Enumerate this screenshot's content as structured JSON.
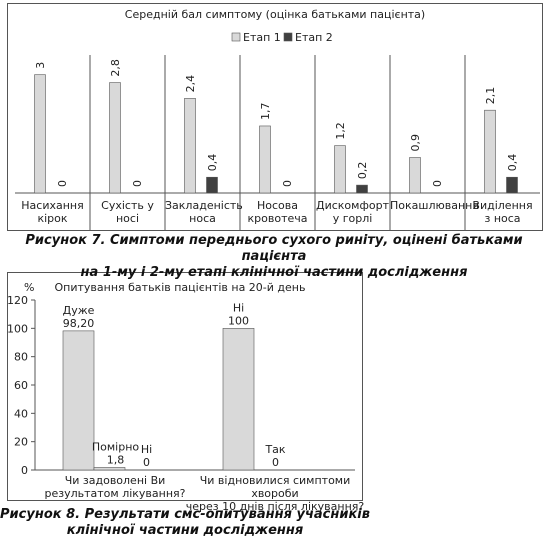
{
  "chart_data": [
    {
      "type": "bar",
      "title": "Середній бал симптому (оцінка батьками пацієнта)",
      "caption": "Рисунок 7. Симптоми переднього сухого риніту, оцінені батьками пацієнта\nна 1-му і 2-му етапі клінічної частини дослідження",
      "categories": [
        "Насихання\nкірок",
        "Сухість у носі",
        "Закладеність\nноса",
        "Носова\nкровотеча",
        "Дискомфорт\nу горлі",
        "Покашлювання",
        "Виділення\nз носа"
      ],
      "series": [
        {
          "name": "Етап 1",
          "color": "#d9d9d9",
          "values": [
            3,
            2.8,
            2.4,
            1.7,
            1.2,
            0.9,
            2.1
          ],
          "value_labels": [
            "3",
            "2,8",
            "2,4",
            "1,7",
            "1,2",
            "0,9",
            "2,1"
          ]
        },
        {
          "name": "Етап 2",
          "color": "#404040",
          "values": [
            0,
            0,
            0.4,
            0,
            0.2,
            0,
            0.4
          ],
          "value_labels": [
            "0",
            "0",
            "0,4",
            "0",
            "0,2",
            "0",
            "0,4"
          ]
        }
      ],
      "ylim": [
        0,
        3.5
      ],
      "legend": "top"
    },
    {
      "type": "grouped-bar",
      "title": "Опитування батьків пацієнтів на 20-й день",
      "caption": "Рисунок 8. Результати смс-опитування учасників\nклінічної частини дослідження",
      "y_label": "%",
      "color": "#d9d9d9",
      "ylim": [
        0,
        120
      ],
      "yticks": [
        0,
        20,
        40,
        60,
        80,
        100,
        120
      ],
      "groups": [
        {
          "category": "Чи задоволені Ви\nрезультатом лікування?",
          "bars": [
            {
              "name": "Дуже",
              "value": 98.2,
              "value_label": "98,20"
            },
            {
              "name": "Помірно",
              "value": 1.8,
              "value_label": "1,8"
            },
            {
              "name": "Ні",
              "value": 0,
              "value_label": "0"
            }
          ]
        },
        {
          "category": "Чи відновилися симптоми хвороби\nчерез 10 днів після лікування?",
          "bars": [
            {
              "name": "Ні",
              "value": 100,
              "value_label": "100"
            },
            {
              "name": "Так",
              "value": 0,
              "value_label": "0"
            }
          ]
        }
      ]
    }
  ]
}
